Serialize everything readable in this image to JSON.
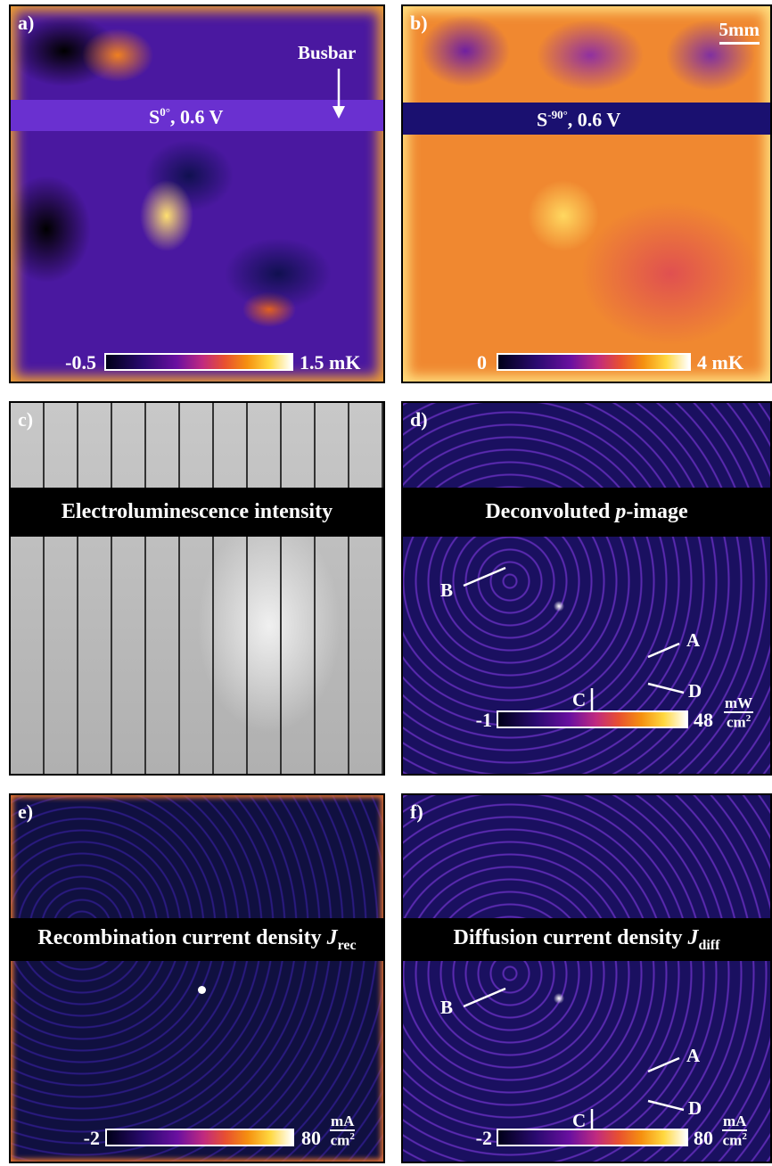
{
  "panel_a": {
    "label": "a)",
    "annotation": "Busbar",
    "signal": {
      "symbol": "S",
      "superscript": "0°",
      "text": ", 0.6 V"
    },
    "colorbar": {
      "min": "-0.5",
      "max": "1.5 mK"
    }
  },
  "panel_b": {
    "label": "b)",
    "scale_bar": "5mm",
    "signal": {
      "symbol": "S",
      "superscript": "-90°",
      "text": ", 0.6 V"
    },
    "colorbar": {
      "min": "0",
      "max": "4 mK"
    }
  },
  "panel_c": {
    "label": "c)",
    "title": "Electroluminescence intensity"
  },
  "panel_d": {
    "label": "d)",
    "title": {
      "text": "Deconvoluted ",
      "italic": "p",
      "suffix": "-image"
    },
    "markers": [
      "B",
      "A",
      "C",
      "D"
    ],
    "colorbar": {
      "min": "-1",
      "max": "48",
      "unit_numerator": "mW",
      "unit_denominator": "cm",
      "unit_exponent": "2"
    }
  },
  "panel_e": {
    "label": "e)",
    "title": {
      "text": "Recombination current density ",
      "italic": "J",
      "subscript": "rec"
    },
    "colorbar": {
      "min": "-2",
      "max": "80",
      "unit_numerator": "mA",
      "unit_denominator": "cm",
      "unit_exponent": "2"
    }
  },
  "panel_f": {
    "label": "f)",
    "title": {
      "text": "Diffusion current density ",
      "italic": "J",
      "subscript": "diff"
    },
    "markers": [
      "B",
      "A",
      "C",
      "D"
    ],
    "colorbar": {
      "min": "-2",
      "max": "80",
      "unit_numerator": "mA",
      "unit_denominator": "cm",
      "unit_exponent": "2"
    }
  }
}
